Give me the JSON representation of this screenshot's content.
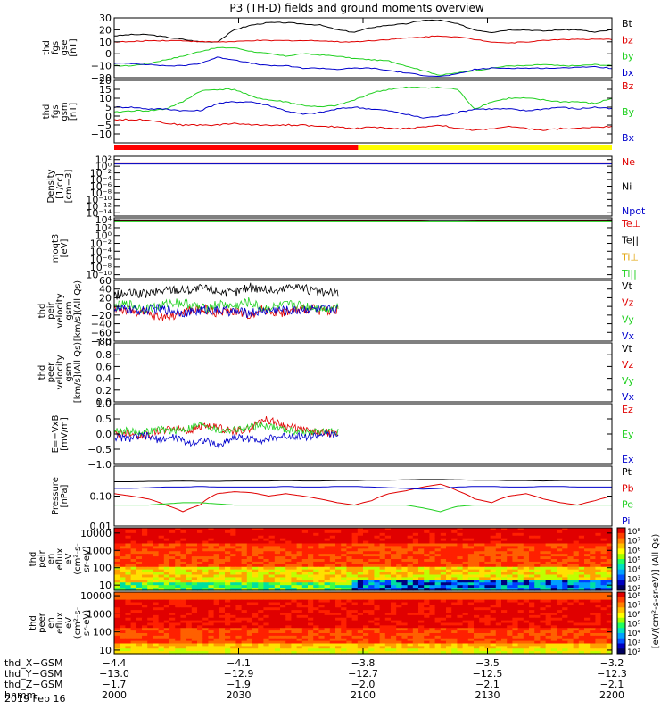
{
  "title": "P3 (TH-D) fields and ground moments overview",
  "date_label": "2019 Feb 16",
  "colors": {
    "black": "#000000",
    "red": "#e00000",
    "green": "#20d020",
    "blue": "#0000cc",
    "yellow": "#ffff00"
  },
  "mode_bar": {
    "label": "",
    "segments": [
      {
        "from": 0,
        "to": 0.49,
        "color": "#ff0000"
      },
      {
        "from": 0.49,
        "to": 1.0,
        "color": "#ffff00"
      }
    ]
  },
  "chart_data": [
    {
      "id": "fgs-gse",
      "type": "line",
      "ylabel": [
        "thd",
        "fgs",
        "gse",
        "[nT]"
      ],
      "ylim": [
        -20,
        30
      ],
      "yticks": [
        "30",
        "20",
        "10",
        "0",
        "−10",
        "−20"
      ],
      "ytick_vals": [
        30,
        20,
        10,
        0,
        -10,
        -20
      ],
      "series": [
        {
          "name": "Bt",
          "color": "#000000",
          "values": [
            15,
            16,
            16,
            14,
            12,
            10,
            10,
            20,
            24,
            26,
            26,
            25,
            24,
            20,
            18,
            22,
            24,
            25,
            28,
            28,
            25,
            20,
            18,
            20,
            20,
            19,
            20,
            20,
            18,
            20
          ]
        },
        {
          "name": "bz",
          "color": "#e00000",
          "values": [
            10,
            10,
            11,
            11,
            11,
            10,
            10,
            10,
            11,
            11,
            11,
            11,
            11,
            10,
            10,
            11,
            12,
            13,
            14,
            15,
            14,
            12,
            10,
            9,
            10,
            11,
            12,
            12,
            12,
            12
          ]
        },
        {
          "name": "by",
          "color": "#20d020",
          "values": [
            -10,
            -10,
            -8,
            -5,
            -2,
            2,
            5,
            5,
            2,
            0,
            -2,
            0,
            -1,
            -2,
            -4,
            -5,
            -6,
            -10,
            -14,
            -18,
            -16,
            -14,
            -12,
            -10,
            -10,
            -9,
            -10,
            -10,
            -9,
            -10
          ]
        },
        {
          "name": "bx",
          "color": "#0000cc",
          "values": [
            -8,
            -8,
            -9,
            -10,
            -10,
            -8,
            -3,
            -5,
            -8,
            -10,
            -10,
            -12,
            -12,
            -13,
            -12,
            -12,
            -14,
            -16,
            -18,
            -19,
            -17,
            -13,
            -12,
            -12,
            -12,
            -12,
            -12,
            -11,
            -11,
            -12
          ]
        }
      ]
    },
    {
      "id": "fgs-gsm",
      "type": "line",
      "ylabel": [
        "thd",
        "fgs",
        "gsm",
        "[nT]"
      ],
      "ylim": [
        -15,
        20
      ],
      "yticks": [
        "20",
        "15",
        "10",
        "5",
        "0",
        "−5",
        "−10"
      ],
      "ytick_vals": [
        20,
        15,
        10,
        5,
        0,
        -5,
        -10
      ],
      "series": [
        {
          "name": "Bz",
          "color": "#e00000",
          "values": [
            -2,
            -2,
            -2,
            -4,
            -5,
            -5,
            -5,
            -4,
            -5,
            -5,
            -5,
            -5,
            -6,
            -6,
            -7,
            -6,
            -7,
            -7,
            -6,
            -5,
            -7,
            -8,
            -7,
            -6,
            -7,
            -8,
            -7,
            -7,
            -6,
            -6
          ]
        },
        {
          "name": "By",
          "color": "#20d020",
          "values": [
            2,
            3,
            3,
            4,
            8,
            14,
            15,
            15,
            11,
            9,
            8,
            6,
            5,
            6,
            9,
            13,
            15,
            16,
            16,
            16,
            15,
            4,
            8,
            10,
            10,
            9,
            8,
            8,
            7,
            10
          ]
        },
        {
          "name": "Bx",
          "color": "#0000cc",
          "values": [
            5,
            5,
            4,
            4,
            3,
            3,
            7,
            8,
            8,
            6,
            3,
            1,
            2,
            4,
            5,
            4,
            3,
            1,
            -1,
            0,
            2,
            4,
            4,
            4,
            3,
            4,
            5,
            4,
            5,
            4
          ]
        }
      ]
    },
    {
      "id": "density",
      "type": "line",
      "ylabel": [
        "Density",
        "[1/cc]",
        "[cm−3]"
      ],
      "yscale": "log",
      "ylim": [
        -15,
        3
      ],
      "yticks": [
        "10²",
        "10⁰",
        "10⁻²",
        "10⁻⁴",
        "10⁻⁶",
        "10⁻⁸",
        "10⁻¹⁰",
        "10⁻¹²",
        "10⁻¹⁴"
      ],
      "ytick_vals": [
        2,
        0,
        -2,
        -4,
        -6,
        -8,
        -10,
        -12,
        -14
      ],
      "series": [
        {
          "name": "Ne",
          "color": "#e00000",
          "values": [
            1,
            1,
            1,
            1,
            1,
            1,
            1,
            1,
            1,
            1,
            1,
            1,
            1,
            1,
            1,
            1,
            1,
            1,
            1,
            1,
            1,
            1,
            1,
            1,
            1,
            1,
            1,
            1,
            1,
            1
          ]
        },
        {
          "name": "Ni",
          "color": "#000000",
          "values": [
            0.9,
            0.9,
            0.9,
            0.9,
            0.9,
            0.9,
            0.9,
            0.9,
            0.9,
            0.9,
            0.9,
            0.9,
            0.9,
            0.9,
            0.9,
            0.9,
            0.9,
            0.9,
            0.9,
            0.9,
            0.9,
            0.9,
            0.9,
            0.9,
            0.9,
            0.9,
            0.9,
            0.9,
            0.9,
            0.9
          ]
        },
        {
          "name": "Npot",
          "color": "#0000cc",
          "values": [
            0.7,
            0.7,
            0.7,
            0.7,
            0.7,
            0.7,
            0.7,
            0.7,
            0.7,
            0.7,
            0.7,
            0.7,
            0.7,
            0.7,
            0.7,
            0.7,
            0.7,
            0.7,
            0.7,
            0.7,
            0.7,
            0.7,
            0.7,
            0.7,
            0.7,
            0.7,
            0.7,
            0.7,
            0.7,
            0.7
          ]
        }
      ]
    },
    {
      "id": "temperature",
      "type": "line",
      "ylabel": [
        "moqt3",
        "[eV]"
      ],
      "yscale": "log",
      "ylim": [
        -11,
        4.5
      ],
      "yticks": [
        "10⁴",
        "10²",
        "10⁰",
        "10⁻²",
        "10⁻⁴",
        "10⁻⁶",
        "10⁻⁸",
        "10⁻¹⁰"
      ],
      "ytick_vals": [
        4,
        2,
        0,
        -2,
        -4,
        -6,
        -8,
        -10
      ],
      "series": [
        {
          "name": "Te⊥",
          "color": "#e00000",
          "values": [
            3.9,
            3.9,
            3.9,
            3.9,
            3.9,
            3.9,
            3.9,
            3.9,
            3.9,
            3.9,
            3.9,
            3.9,
            3.9,
            3.9,
            3.9,
            3.9,
            3.9,
            3.9,
            3.8,
            3.6,
            3.7,
            3.8,
            3.9,
            3.9,
            3.9,
            3.9,
            3.9,
            3.9,
            3.9,
            3.9
          ]
        },
        {
          "name": "Te||",
          "color": "#000000",
          "values": [
            4,
            4,
            4,
            4,
            4,
            4,
            4,
            4,
            4,
            4,
            4,
            4,
            4,
            4,
            4,
            4,
            4,
            4,
            4,
            4,
            4,
            4,
            4,
            4,
            4,
            4,
            4,
            4,
            4,
            4
          ]
        },
        {
          "name": "Ti⊥",
          "color": "#e0a000",
          "values": [
            3.6,
            3.6,
            3.6,
            3.6,
            3.6,
            3.6,
            3.6,
            3.6,
            3.6,
            3.6,
            3.6,
            3.6,
            3.6,
            3.6,
            3.6,
            3.6,
            3.6,
            3.6,
            3.6,
            3.6,
            3.6,
            3.6,
            3.6,
            3.6,
            3.6,
            3.6,
            3.6,
            3.6,
            3.6,
            3.6
          ]
        },
        {
          "name": "Ti||",
          "color": "#20d020",
          "values": [
            3.5,
            3.5,
            3.5,
            3.5,
            3.5,
            3.5,
            3.5,
            3.5,
            3.5,
            3.5,
            3.5,
            3.5,
            3.5,
            3.5,
            3.5,
            3.5,
            3.5,
            3.5,
            3.5,
            3.5,
            3.5,
            3.5,
            3.5,
            3.5,
            3.5,
            3.5,
            3.5,
            3.5,
            3.5,
            3.5
          ]
        }
      ]
    },
    {
      "id": "peir-velocity",
      "type": "line",
      "ylabel": [
        "thd",
        "peir",
        "velocity",
        "gsm",
        "[km/s](All Qs)"
      ],
      "ylim": [
        -80,
        60
      ],
      "yticks": [
        "60",
        "40",
        "20",
        "0",
        "−20",
        "−40",
        "−60",
        "−80"
      ],
      "ytick_vals": [
        60,
        40,
        20,
        0,
        -20,
        -40,
        -60,
        -80
      ],
      "x_end": 0.45,
      "series": [
        {
          "name": "Vt",
          "color": "#000000",
          "values": [
            25,
            30,
            28,
            35,
            40,
            38,
            42,
            36,
            30,
            45,
            40,
            35,
            50,
            38,
            30,
            32
          ]
        },
        {
          "name": "Vz",
          "color": "#e00000",
          "values": [
            -5,
            -10,
            -15,
            -25,
            -20,
            -10,
            -5,
            -15,
            -10,
            -20,
            -5,
            -15,
            -10,
            -5,
            -10,
            -5
          ]
        },
        {
          "name": "Vy",
          "color": "#20d020",
          "values": [
            0,
            5,
            -5,
            0,
            10,
            5,
            -5,
            5,
            0,
            10,
            -5,
            0,
            5,
            0,
            -5,
            0
          ]
        },
        {
          "name": "Vx",
          "color": "#0000cc",
          "values": [
            -5,
            -8,
            -10,
            -5,
            -10,
            -15,
            -8,
            -10,
            -12,
            -15,
            -10,
            -8,
            -10,
            -5,
            -8,
            -5
          ]
        }
      ]
    },
    {
      "id": "peer-velocity",
      "type": "line",
      "ylabel": [
        "thd",
        "peer",
        "velocity",
        "gsm",
        "[km/s](All Qs)"
      ],
      "ylim": [
        0,
        1
      ],
      "yticks": [
        "1.0",
        "0.8",
        "0.6",
        "0.4",
        "0.2",
        "0.0"
      ],
      "ytick_vals": [
        1,
        0.8,
        0.6,
        0.4,
        0.2,
        0
      ],
      "series": [
        {
          "name": "Vt",
          "color": "#000000",
          "values": []
        },
        {
          "name": "Vz",
          "color": "#e00000",
          "values": []
        },
        {
          "name": "Vy",
          "color": "#20d020",
          "values": []
        },
        {
          "name": "Vx",
          "color": "#0000cc",
          "values": []
        }
      ]
    },
    {
      "id": "efield",
      "type": "line",
      "ylabel": [
        "E=−VxB",
        "[mV/m]"
      ],
      "ylim": [
        -1,
        1
      ],
      "yticks": [
        "1.0",
        "0.5",
        "0.0",
        "−0.5",
        "−1.0"
      ],
      "ytick_vals": [
        1,
        0.5,
        0,
        -0.5,
        -1
      ],
      "x_end": 0.45,
      "series": [
        {
          "name": "Ez",
          "color": "#e00000",
          "values": [
            0,
            0.05,
            -0.1,
            0.1,
            0.2,
            0.1,
            0.3,
            0.2,
            0.1,
            0.15,
            0.5,
            0.35,
            0.2,
            0.1,
            0.05,
            0
          ]
        },
        {
          "name": "Ey",
          "color": "#20d020",
          "values": [
            0.1,
            0.1,
            0.05,
            0.15,
            0.1,
            0.2,
            0.35,
            0.1,
            0.15,
            0.2,
            0.3,
            0.2,
            0.1,
            0.05,
            0.1,
            0.05
          ]
        },
        {
          "name": "Ex",
          "color": "#0000cc",
          "values": [
            -0.1,
            -0.15,
            -0.05,
            -0.2,
            -0.1,
            -0.3,
            -0.2,
            -0.4,
            -0.1,
            -0.15,
            -0.2,
            -0.1,
            -0.05,
            -0.1,
            0,
            -0.05
          ]
        }
      ]
    },
    {
      "id": "pressure",
      "type": "line",
      "ylabel": [
        "Pressure",
        "[nPa]"
      ],
      "yscale": "log",
      "ylim": [
        -2,
        0
      ],
      "yticks": [
        "0.10",
        "0.01"
      ],
      "ytick_vals": [
        -1,
        -2
      ],
      "series": [
        {
          "name": "Pt",
          "color": "#000000",
          "values": [
            0.3,
            0.3,
            0.31,
            0.31,
            0.32,
            0.31,
            0.31,
            0.32,
            0.32,
            0.32,
            0.33,
            0.32,
            0.32,
            0.33,
            0.33,
            0.34,
            0.34,
            0.35,
            0.36,
            0.36,
            0.35,
            0.34,
            0.34,
            0.33,
            0.33,
            0.32,
            0.33,
            0.33,
            0.33,
            0.33
          ]
        },
        {
          "name": "Pb",
          "color": "#e00000",
          "values": [
            0.12,
            0.1,
            0.08,
            0.05,
            0.03,
            0.05,
            0.12,
            0.14,
            0.13,
            0.1,
            0.12,
            0.1,
            0.08,
            0.06,
            0.05,
            0.07,
            0.12,
            0.15,
            0.2,
            0.25,
            0.15,
            0.08,
            0.06,
            0.1,
            0.12,
            0.08,
            0.06,
            0.05,
            0.07,
            0.1
          ]
        },
        {
          "name": "Pe",
          "color": "#20d020",
          "values": [
            0.05,
            0.05,
            0.05,
            0.055,
            0.06,
            0.06,
            0.055,
            0.05,
            0.05,
            0.05,
            0.05,
            0.05,
            0.05,
            0.05,
            0.05,
            0.05,
            0.05,
            0.05,
            0.04,
            0.03,
            0.045,
            0.05,
            0.05,
            0.05,
            0.05,
            0.05,
            0.05,
            0.05,
            0.05,
            0.05
          ]
        },
        {
          "name": "Pi",
          "color": "#0000cc",
          "values": [
            0.18,
            0.18,
            0.19,
            0.2,
            0.2,
            0.21,
            0.2,
            0.2,
            0.2,
            0.2,
            0.21,
            0.2,
            0.2,
            0.21,
            0.21,
            0.2,
            0.19,
            0.18,
            0.17,
            0.18,
            0.2,
            0.21,
            0.21,
            0.2,
            0.2,
            0.21,
            0.21,
            0.2,
            0.2,
            0.2
          ]
        }
      ]
    },
    {
      "id": "peir-spectrogram",
      "type": "heatmap",
      "ylabel": [
        "thd",
        "peir",
        "en",
        "eflux",
        "eV",
        "(cm²-s-",
        "sr-eV)"
      ],
      "yscale": "log",
      "ylim": [
        0.7,
        4.3
      ],
      "yticks": [
        "10000",
        "1000",
        "100",
        "10"
      ],
      "ytick_vals": [
        4,
        3,
        2,
        1
      ]
    },
    {
      "id": "peer-spectrogram",
      "type": "heatmap",
      "ylabel": [
        "thd",
        "peer",
        "en",
        "eflux",
        "eV",
        "(cm²-s-",
        "sr-eV)"
      ],
      "yscale": "log",
      "ylim": [
        0.8,
        4.2
      ],
      "yticks": [
        "10000",
        "1000",
        "100",
        "10"
      ],
      "ytick_vals": [
        4,
        3,
        2,
        1
      ]
    }
  ],
  "colorbar": {
    "label": "[eV/(cm²-s-sr-eV)] (All Qs)",
    "ticks_top": [
      "10⁸",
      "10⁷",
      "10⁶",
      "10⁵",
      "10⁴",
      "10³",
      "10²"
    ],
    "ticks_bottom": [
      "10⁸",
      "10⁷",
      "10⁶",
      "10⁵",
      "10⁴",
      "10³",
      "10²"
    ]
  },
  "x_axis": {
    "rows": [
      {
        "label": "thd_X−GSM",
        "values": [
          "−4.4",
          "−4.1",
          "−3.8",
          "−3.5",
          "−3.2"
        ]
      },
      {
        "label": "thd_Y−GSM",
        "values": [
          "−13.0",
          "−12.9",
          "−12.7",
          "−12.5",
          "−12.3"
        ]
      },
      {
        "label": "thd_Z−GSM",
        "values": [
          "−1.7",
          "−1.9",
          "−2.0",
          "−2.1",
          "−2.1"
        ]
      },
      {
        "label": "hhmm",
        "values": [
          "2000",
          "2030",
          "2100",
          "2130",
          "2200"
        ]
      }
    ]
  }
}
